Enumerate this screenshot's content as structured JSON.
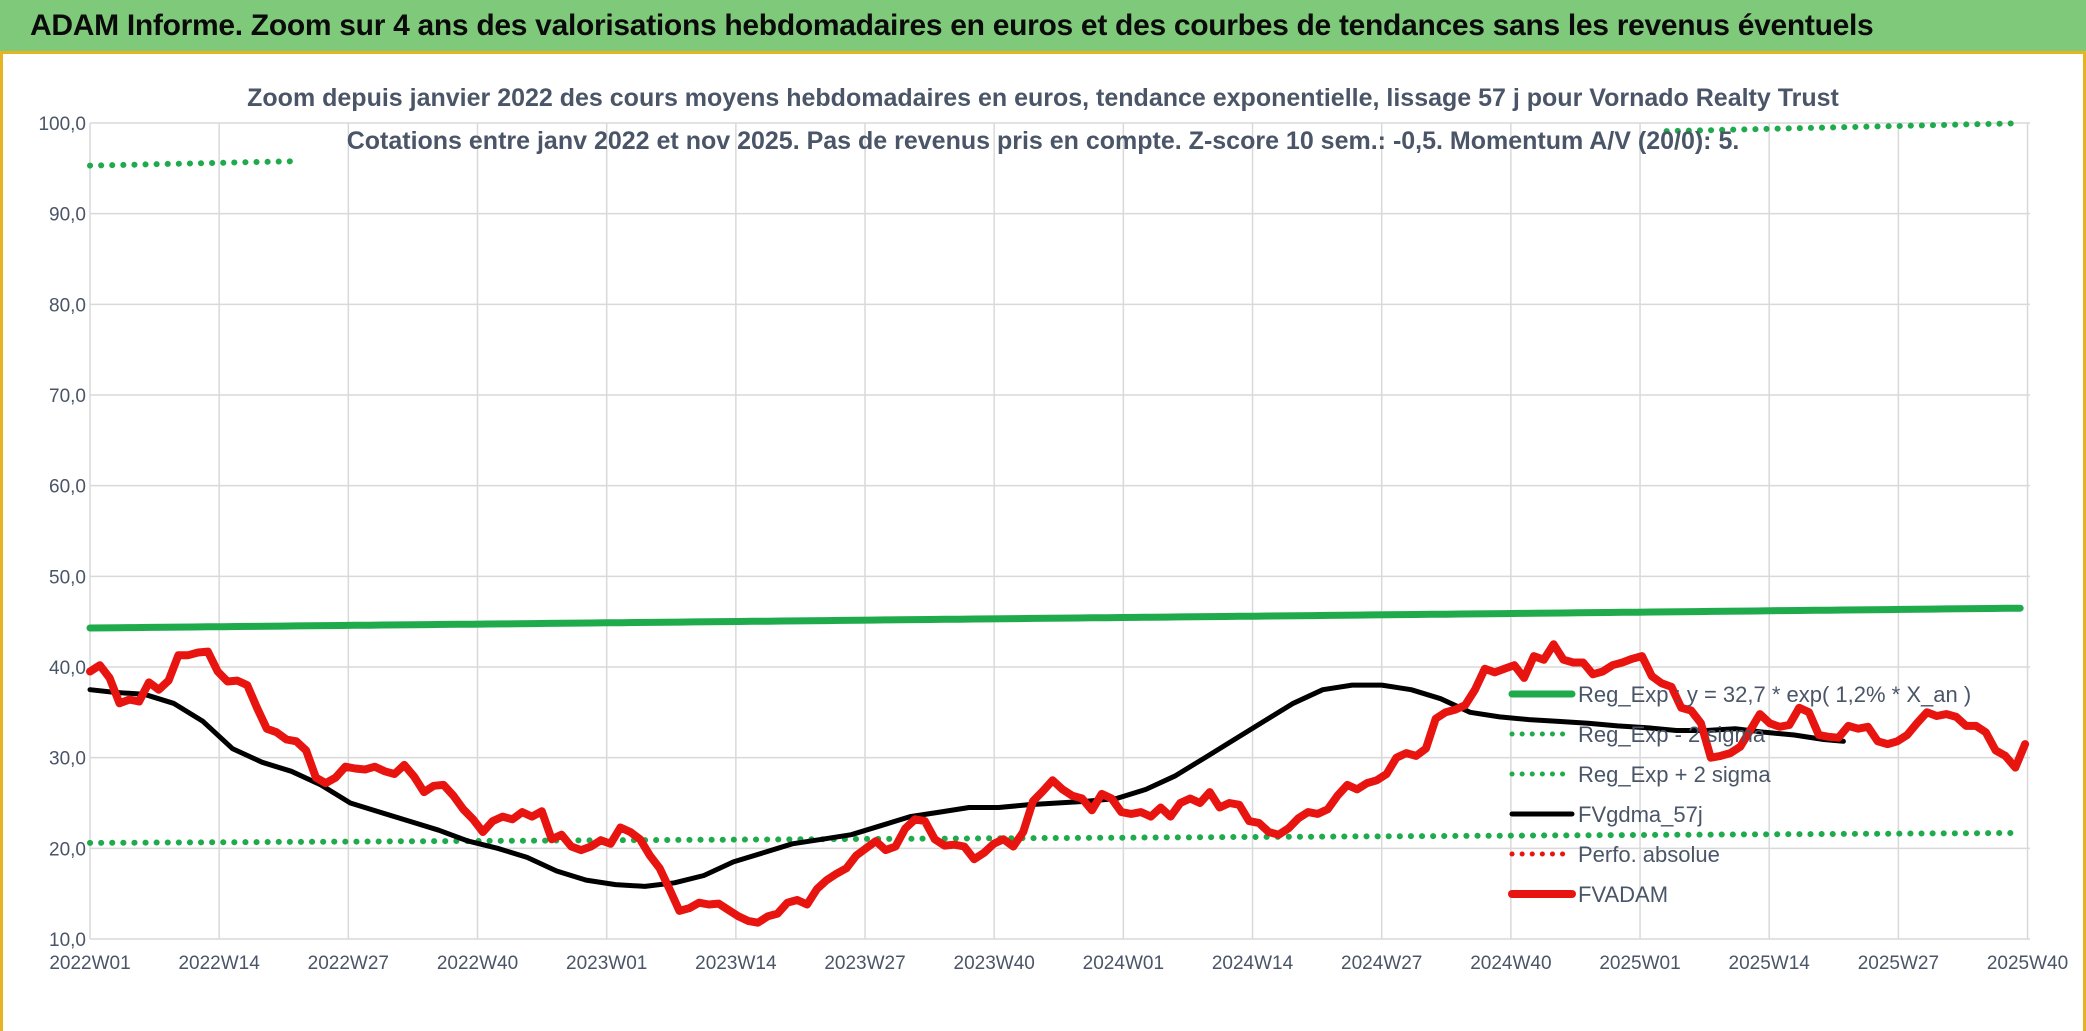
{
  "header": {
    "title": "ADAM Informe. Zoom sur 4 ans des valorisations hebdomadaires en euros et des courbes de tendances sans les revenus éventuels"
  },
  "chart_data": {
    "type": "line",
    "title": "Zoom depuis janvier 2022 des cours moyens hebdomadaires en euros, tendance exponentielle, lissage 57 j pour Vornado Realty Trust",
    "subtitle": "Cotations entre janv 2022 et nov 2025. Pas de revenus pris en compte. Z-score 10 sem.: -0,5. Momentum A/V (20/0): 5.",
    "xlabel": "",
    "ylabel": "",
    "ylim": [
      10,
      100
    ],
    "yticks": [
      "10,0",
      "20,0",
      "30,0",
      "40,0",
      "50,0",
      "60,0",
      "70,0",
      "80,0",
      "90,0",
      "100,0"
    ],
    "x_categories": [
      "2022W01",
      "2022W14",
      "2022W27",
      "2022W40",
      "2023W01",
      "2023W14",
      "2023W27",
      "2023W40",
      "2024W01",
      "2024W14",
      "2024W27",
      "2024W40",
      "2025W01",
      "2025W14",
      "2025W27",
      "2025W40"
    ],
    "grid": true,
    "legend_position": "right",
    "series": [
      {
        "name": "Reg_Exp : y = 32,7 * exp( 1,2% * X_an )",
        "color": "#1faa4b",
        "style": "solid",
        "start": 44.3,
        "end": 46.5
      },
      {
        "name": "Reg_Exp - 2 sigma",
        "color": "#1faa4b",
        "style": "dotted",
        "start": 20.6,
        "end": 21.7
      },
      {
        "name": "Reg_Exp + 2 sigma",
        "color": "#1faa4b",
        "style": "dotted",
        "start": 95.3,
        "end": 100.0
      },
      {
        "name": "FVgdma_57j",
        "color": "#000000",
        "style": "solid",
        "points": [
          [
            1,
            37.5
          ],
          [
            6,
            37.2
          ],
          [
            12,
            37.0
          ],
          [
            18,
            36.0
          ],
          [
            24,
            34.0
          ],
          [
            30,
            31.0
          ],
          [
            36,
            29.5
          ],
          [
            42,
            28.5
          ],
          [
            48,
            27.0
          ],
          [
            54,
            25.0
          ],
          [
            60,
            24.0
          ],
          [
            66,
            23.0
          ],
          [
            72,
            22.0
          ],
          [
            78,
            20.8
          ],
          [
            84,
            20.0
          ],
          [
            90,
            19.0
          ],
          [
            96,
            17.5
          ],
          [
            102,
            16.5
          ],
          [
            108,
            16.0
          ],
          [
            114,
            15.8
          ],
          [
            120,
            16.2
          ],
          [
            126,
            17.0
          ],
          [
            132,
            18.5
          ],
          [
            138,
            19.5
          ],
          [
            144,
            20.5
          ],
          [
            150,
            21.0
          ],
          [
            156,
            21.5
          ],
          [
            162,
            22.5
          ],
          [
            168,
            23.5
          ],
          [
            174,
            24.0
          ],
          [
            180,
            24.5
          ],
          [
            186,
            24.5
          ],
          [
            192,
            24.8
          ],
          [
            198,
            25.0
          ],
          [
            204,
            25.2
          ],
          [
            210,
            25.5
          ],
          [
            216,
            26.5
          ],
          [
            222,
            28.0
          ],
          [
            228,
            30.0
          ],
          [
            234,
            32.0
          ],
          [
            240,
            34.0
          ],
          [
            246,
            36.0
          ],
          [
            252,
            37.5
          ],
          [
            258,
            38.0
          ],
          [
            264,
            38.0
          ],
          [
            270,
            37.5
          ],
          [
            276,
            36.5
          ],
          [
            282,
            35.0
          ],
          [
            288,
            34.5
          ],
          [
            294,
            34.2
          ],
          [
            300,
            34.0
          ],
          [
            306,
            33.8
          ],
          [
            312,
            33.5
          ],
          [
            318,
            33.3
          ],
          [
            324,
            33.0
          ],
          [
            330,
            33.0
          ],
          [
            336,
            33.2
          ],
          [
            342,
            32.8
          ],
          [
            348,
            32.5
          ],
          [
            354,
            32.0
          ],
          [
            358,
            31.8
          ]
        ]
      },
      {
        "name": "Perfo. absolue",
        "color": "#e8140f",
        "style": "dotted"
      },
      {
        "name": "FVADAM",
        "color": "#e8140f",
        "style": "solid",
        "points": [
          [
            1,
            39.5
          ],
          [
            3,
            40.2
          ],
          [
            5,
            38.8
          ],
          [
            7,
            36.0
          ],
          [
            9,
            36.4
          ],
          [
            11,
            36.2
          ],
          [
            13,
            38.3
          ],
          [
            15,
            37.5
          ],
          [
            17,
            38.5
          ],
          [
            19,
            41.3
          ],
          [
            21,
            41.3
          ],
          [
            23,
            41.6
          ],
          [
            25,
            41.7
          ],
          [
            27,
            39.5
          ],
          [
            29,
            38.4
          ],
          [
            31,
            38.5
          ],
          [
            33,
            38.0
          ],
          [
            35,
            35.5
          ],
          [
            37,
            33.2
          ],
          [
            39,
            32.8
          ],
          [
            41,
            32.0
          ],
          [
            43,
            31.8
          ],
          [
            45,
            30.8
          ],
          [
            47,
            27.8
          ],
          [
            49,
            27.2
          ],
          [
            51,
            27.8
          ],
          [
            53,
            29.0
          ],
          [
            55,
            28.8
          ],
          [
            57,
            28.7
          ],
          [
            59,
            29.0
          ],
          [
            61,
            28.5
          ],
          [
            63,
            28.2
          ],
          [
            65,
            29.2
          ],
          [
            67,
            27.9
          ],
          [
            69,
            26.2
          ],
          [
            71,
            26.9
          ],
          [
            73,
            27.0
          ],
          [
            75,
            25.8
          ],
          [
            77,
            24.3
          ],
          [
            79,
            23.2
          ],
          [
            81,
            21.8
          ],
          [
            83,
            23.0
          ],
          [
            85,
            23.5
          ],
          [
            87,
            23.2
          ],
          [
            89,
            24.0
          ],
          [
            91,
            23.5
          ],
          [
            93,
            24.1
          ],
          [
            95,
            21.0
          ],
          [
            97,
            21.5
          ],
          [
            99,
            20.2
          ],
          [
            101,
            19.8
          ],
          [
            103,
            20.2
          ],
          [
            105,
            20.9
          ],
          [
            107,
            20.5
          ],
          [
            109,
            22.3
          ],
          [
            111,
            21.8
          ],
          [
            113,
            21.0
          ],
          [
            115,
            19.2
          ],
          [
            117,
            17.8
          ],
          [
            119,
            15.5
          ],
          [
            121,
            13.1
          ],
          [
            123,
            13.4
          ],
          [
            125,
            14.0
          ],
          [
            127,
            13.8
          ],
          [
            129,
            13.9
          ],
          [
            131,
            13.2
          ],
          [
            133,
            12.5
          ],
          [
            135,
            12.0
          ],
          [
            137,
            11.8
          ],
          [
            139,
            12.5
          ],
          [
            141,
            12.8
          ],
          [
            143,
            14.0
          ],
          [
            145,
            14.3
          ],
          [
            147,
            13.8
          ],
          [
            149,
            15.5
          ],
          [
            151,
            16.5
          ],
          [
            153,
            17.2
          ],
          [
            155,
            17.8
          ],
          [
            157,
            19.2
          ],
          [
            159,
            20.0
          ],
          [
            161,
            20.8
          ],
          [
            163,
            19.8
          ],
          [
            165,
            20.2
          ],
          [
            167,
            22.2
          ],
          [
            169,
            23.2
          ],
          [
            171,
            23.0
          ],
          [
            173,
            21.0
          ],
          [
            175,
            20.3
          ],
          [
            177,
            20.4
          ],
          [
            179,
            20.2
          ],
          [
            181,
            18.8
          ],
          [
            183,
            19.5
          ],
          [
            185,
            20.5
          ],
          [
            187,
            21.0
          ],
          [
            189,
            20.2
          ],
          [
            191,
            21.8
          ],
          [
            193,
            25.2
          ],
          [
            195,
            26.3
          ],
          [
            197,
            27.5
          ],
          [
            199,
            26.5
          ],
          [
            201,
            25.8
          ],
          [
            203,
            25.5
          ],
          [
            205,
            24.2
          ],
          [
            207,
            26.0
          ],
          [
            209,
            25.5
          ],
          [
            211,
            24.0
          ],
          [
            213,
            23.8
          ],
          [
            215,
            24.0
          ],
          [
            217,
            23.5
          ],
          [
            219,
            24.5
          ],
          [
            221,
            23.5
          ],
          [
            223,
            25.0
          ],
          [
            225,
            25.5
          ],
          [
            227,
            25.0
          ],
          [
            229,
            26.2
          ],
          [
            231,
            24.5
          ],
          [
            233,
            25.0
          ],
          [
            235,
            24.8
          ],
          [
            237,
            23.0
          ],
          [
            239,
            22.8
          ],
          [
            241,
            21.8
          ],
          [
            243,
            21.5
          ],
          [
            245,
            22.2
          ],
          [
            247,
            23.3
          ],
          [
            249,
            24.0
          ],
          [
            251,
            23.8
          ],
          [
            253,
            24.3
          ],
          [
            255,
            25.8
          ],
          [
            257,
            27.0
          ],
          [
            259,
            26.5
          ],
          [
            261,
            27.2
          ],
          [
            263,
            27.5
          ],
          [
            265,
            28.2
          ],
          [
            267,
            30.0
          ],
          [
            269,
            30.5
          ],
          [
            271,
            30.2
          ],
          [
            273,
            31.0
          ],
          [
            275,
            34.3
          ],
          [
            277,
            35.0
          ],
          [
            279,
            35.3
          ],
          [
            281,
            35.8
          ],
          [
            283,
            37.5
          ],
          [
            285,
            39.8
          ],
          [
            287,
            39.4
          ],
          [
            289,
            39.8
          ],
          [
            291,
            40.2
          ],
          [
            293,
            38.8
          ],
          [
            295,
            41.2
          ],
          [
            297,
            40.8
          ],
          [
            299,
            42.5
          ],
          [
            301,
            40.8
          ],
          [
            303,
            40.5
          ],
          [
            305,
            40.5
          ],
          [
            307,
            39.2
          ],
          [
            309,
            39.5
          ],
          [
            311,
            40.2
          ],
          [
            313,
            40.5
          ],
          [
            315,
            40.9
          ],
          [
            317,
            41.2
          ],
          [
            319,
            39.0
          ],
          [
            321,
            38.2
          ],
          [
            323,
            37.8
          ],
          [
            325,
            35.5
          ],
          [
            327,
            35.2
          ],
          [
            329,
            33.8
          ],
          [
            331,
            30.0
          ],
          [
            333,
            30.2
          ],
          [
            335,
            30.5
          ],
          [
            337,
            31.2
          ],
          [
            339,
            33.0
          ],
          [
            341,
            34.8
          ],
          [
            343,
            33.8
          ],
          [
            345,
            33.4
          ],
          [
            347,
            33.6
          ],
          [
            349,
            35.5
          ],
          [
            351,
            35.0
          ],
          [
            353,
            32.5
          ],
          [
            355,
            32.3
          ],
          [
            357,
            32.2
          ],
          [
            359,
            33.5
          ],
          [
            361,
            33.2
          ],
          [
            363,
            33.4
          ],
          [
            365,
            31.8
          ],
          [
            367,
            31.5
          ],
          [
            369,
            31.8
          ],
          [
            371,
            32.5
          ],
          [
            373,
            33.8
          ],
          [
            375,
            35.0
          ],
          [
            377,
            34.6
          ],
          [
            379,
            34.8
          ],
          [
            381,
            34.5
          ],
          [
            383,
            33.5
          ],
          [
            385,
            33.5
          ],
          [
            387,
            32.8
          ],
          [
            389,
            30.8
          ],
          [
            391,
            30.2
          ],
          [
            393,
            28.9
          ],
          [
            395,
            31.5
          ]
        ]
      }
    ]
  }
}
